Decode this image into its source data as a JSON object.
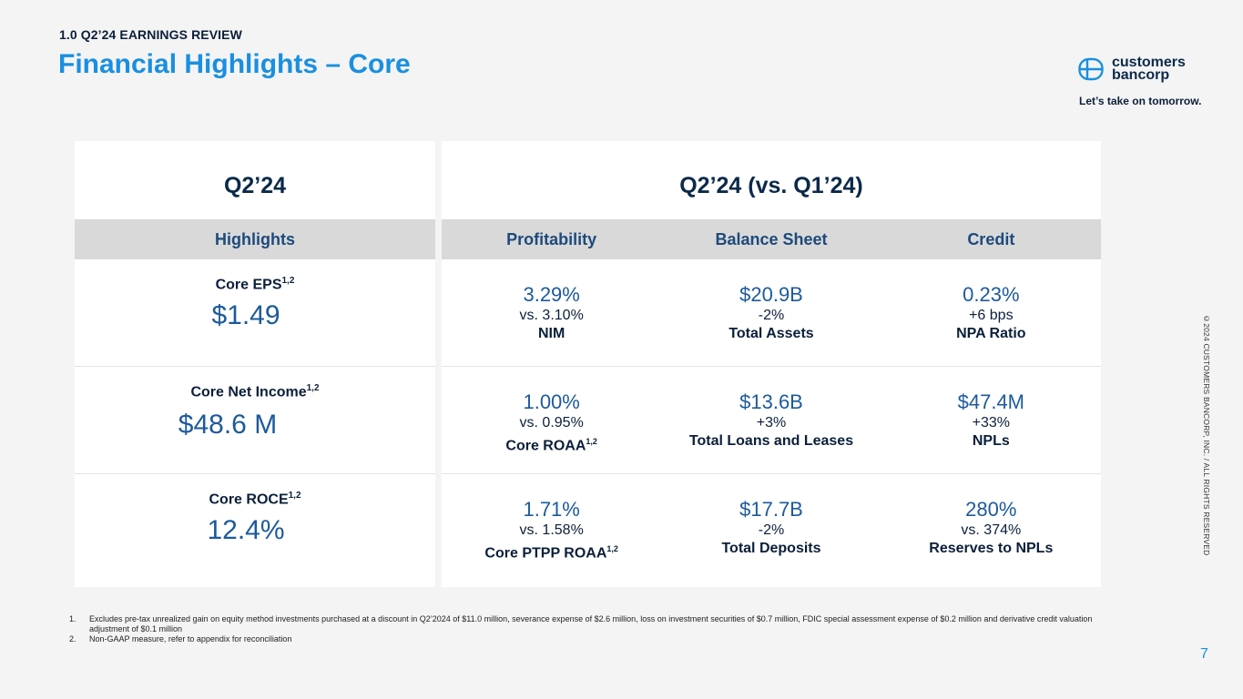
{
  "header": {
    "section": "1.0 Q2’24 EARNINGS REVIEW",
    "title": "Financial Highlights – Core"
  },
  "brand": {
    "logo_line1": "customers",
    "logo_line2": "bancorp",
    "tagline": "Let’s take on tomorrow.",
    "accent_color": "#1a8fe0",
    "navy_color": "#0b2a4a"
  },
  "left_panel": {
    "title": "Q2’24",
    "column": "Highlights",
    "items": [
      {
        "label": "Core EPS",
        "sup": "1,2",
        "value": "$1.49"
      },
      {
        "label": "Core Net Income",
        "sup": "1,2",
        "value": "$48.6 M"
      },
      {
        "label": "Core ROCE",
        "sup": "1,2",
        "value": "12.4%"
      }
    ]
  },
  "right_panel": {
    "title": "Q2’24 (vs. Q1’24)",
    "columns": [
      "Profitability",
      "Balance Sheet",
      "Credit"
    ],
    "rows": [
      [
        {
          "value": "3.29%",
          "delta": "vs. 3.10%",
          "label": "NIM",
          "sup": ""
        },
        {
          "value": "$20.9B",
          "delta": "-2%",
          "label": "Total Assets",
          "sup": ""
        },
        {
          "value": "0.23%",
          "delta": "+6 bps",
          "label": "NPA Ratio",
          "sup": ""
        }
      ],
      [
        {
          "value": "1.00%",
          "delta": "vs. 0.95%",
          "label": "Core ROAA",
          "sup": "1,2"
        },
        {
          "value": "$13.6B",
          "delta": "+3%",
          "label": "Total Loans and Leases",
          "sup": ""
        },
        {
          "value": "$47.4M",
          "delta": "+33%",
          "label": "NPLs",
          "sup": ""
        }
      ],
      [
        {
          "value": "1.71%",
          "delta": "vs. 1.58%",
          "label": "Core PTPP ROAA",
          "sup": "1,2"
        },
        {
          "value": "$17.7B",
          "delta": "-2%",
          "label": "Total Deposits",
          "sup": ""
        },
        {
          "value": "280%",
          "delta": "vs. 374%",
          "label": "Reserves to NPLs",
          "sup": ""
        }
      ]
    ]
  },
  "footnotes": [
    {
      "num": "1.",
      "text": "Excludes pre-tax unrealized gain on equity method investments purchased at a discount in Q2’2024 of $11.0 million, severance expense of $2.6 million, loss on investment securities of $0.7 million, FDIC special assessment expense of $0.2 million and derivative credit valuation adjustment of $0.1 million"
    },
    {
      "num": "2.",
      "text": "Non-GAAP measure, refer to appendix for reconciliation"
    }
  ],
  "copyright": "©2024 CUSTOMERS BANCORP, INC. / ALL RIGHTS RESERVED",
  "page_number": "7"
}
